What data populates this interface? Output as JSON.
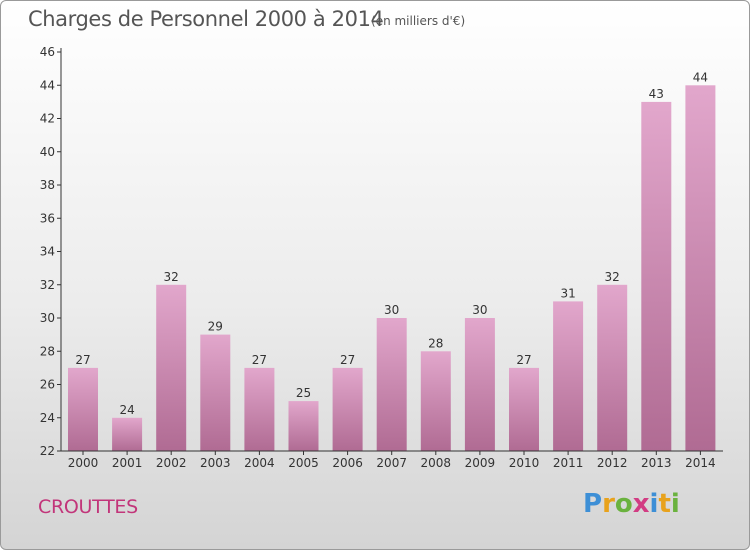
{
  "header": {
    "title": "Charges de Personnel 2000 à 2014",
    "subtitle": "(en milliers d'€)"
  },
  "footer": {
    "commune": "CROUTTES",
    "logo_text": "Proxiti",
    "logo_letters": [
      "P",
      "r",
      "o",
      "x",
      "i",
      "t",
      "i"
    ],
    "logo_colors": [
      "#3d8fd6",
      "#e8a21c",
      "#6ab23e",
      "#d23c83",
      "#3d8fd6",
      "#e8a21c",
      "#6ab23e"
    ]
  },
  "colors": {
    "bar_top": "#e2a7cc",
    "bar_bottom": "#b06b93",
    "axis": "#333333",
    "title": "#555555",
    "commune": "#c2357a"
  },
  "chart_data": {
    "type": "bar",
    "title": "Charges de Personnel 2000 à 2014",
    "subtitle": "(en milliers d'€)",
    "categories": [
      "2000",
      "2001",
      "2002",
      "2003",
      "2004",
      "2005",
      "2006",
      "2007",
      "2008",
      "2009",
      "2010",
      "2011",
      "2012",
      "2013",
      "2014"
    ],
    "values": [
      27,
      24,
      32,
      29,
      27,
      25,
      27,
      30,
      28,
      30,
      27,
      31,
      32,
      43,
      44
    ],
    "ylim": [
      22,
      46
    ],
    "yticks": [
      22,
      24,
      26,
      28,
      30,
      32,
      34,
      36,
      38,
      40,
      42,
      44,
      46
    ],
    "xlabel": "",
    "ylabel": "",
    "grid": false,
    "data_labels": true
  }
}
